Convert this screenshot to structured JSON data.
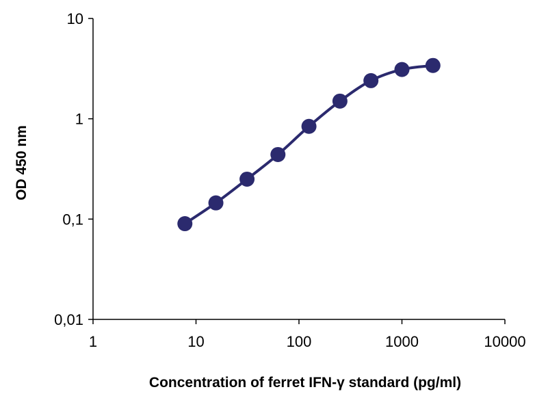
{
  "chart_data": {
    "type": "line",
    "title": "",
    "xlabel": "Concentration of ferret IFN-γ standard (pg/ml)",
    "ylabel": "OD 450 nm",
    "x_scale": "log",
    "y_scale": "log",
    "xlim": [
      1,
      10000
    ],
    "ylim": [
      0.01,
      10
    ],
    "x_ticks": [
      "1",
      "10",
      "100",
      "1000",
      "10000"
    ],
    "y_ticks": [
      "0,01",
      "0,1",
      "1",
      "10"
    ],
    "grid": false,
    "legend": "none",
    "series": [
      {
        "color": "#2b2a6e",
        "smooth": true,
        "points": [
          {
            "x": 7.8,
            "y": 0.09
          },
          {
            "x": 15.6,
            "y": 0.145
          },
          {
            "x": 31.3,
            "y": 0.25
          },
          {
            "x": 62.5,
            "y": 0.44
          },
          {
            "x": 125,
            "y": 0.84
          },
          {
            "x": 250,
            "y": 1.5
          },
          {
            "x": 500,
            "y": 2.4
          },
          {
            "x": 1000,
            "y": 3.1
          },
          {
            "x": 2000,
            "y": 3.4
          }
        ]
      }
    ]
  }
}
